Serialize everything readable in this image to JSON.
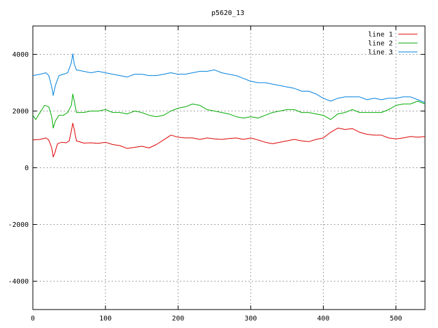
{
  "chart_data": {
    "type": "line",
    "title": "p5620_13",
    "xlabel": "",
    "ylabel": "",
    "xlim": [
      0,
      540
    ],
    "ylim": [
      -5000,
      5000
    ],
    "xticks": [
      0,
      100,
      200,
      300,
      400,
      500
    ],
    "yticks": [
      -4000,
      -2000,
      0,
      2000,
      4000
    ],
    "xtick_labels": [
      "0",
      "100",
      "200",
      "300",
      "400",
      "500"
    ],
    "ytick_labels": [
      "-4000",
      "-2000",
      "0",
      "2000",
      "4000"
    ],
    "grid": true,
    "legend_position": "top-right",
    "series": [
      {
        "name": "line 1",
        "color": "#dd0000",
        "points": [
          [
            0,
            980
          ],
          [
            10,
            1000
          ],
          [
            18,
            1050
          ],
          [
            22,
            980
          ],
          [
            26,
            700
          ],
          [
            28,
            380
          ],
          [
            30,
            500
          ],
          [
            34,
            850
          ],
          [
            40,
            900
          ],
          [
            46,
            880
          ],
          [
            50,
            950
          ],
          [
            53,
            1300
          ],
          [
            55,
            1570
          ],
          [
            57,
            1350
          ],
          [
            60,
            950
          ],
          [
            70,
            870
          ],
          [
            80,
            880
          ],
          [
            90,
            860
          ],
          [
            100,
            900
          ],
          [
            110,
            820
          ],
          [
            120,
            780
          ],
          [
            130,
            680
          ],
          [
            140,
            720
          ],
          [
            150,
            760
          ],
          [
            160,
            700
          ],
          [
            170,
            820
          ],
          [
            180,
            980
          ],
          [
            190,
            1150
          ],
          [
            200,
            1080
          ],
          [
            210,
            1050
          ],
          [
            220,
            1050
          ],
          [
            230,
            1000
          ],
          [
            240,
            1050
          ],
          [
            250,
            1020
          ],
          [
            260,
            1000
          ],
          [
            270,
            1030
          ],
          [
            280,
            1050
          ],
          [
            290,
            1000
          ],
          [
            300,
            1050
          ],
          [
            310,
            980
          ],
          [
            320,
            900
          ],
          [
            330,
            850
          ],
          [
            340,
            900
          ],
          [
            350,
            950
          ],
          [
            360,
            1000
          ],
          [
            370,
            950
          ],
          [
            380,
            920
          ],
          [
            390,
            1000
          ],
          [
            400,
            1050
          ],
          [
            410,
            1250
          ],
          [
            420,
            1400
          ],
          [
            430,
            1350
          ],
          [
            440,
            1380
          ],
          [
            450,
            1250
          ],
          [
            460,
            1180
          ],
          [
            470,
            1150
          ],
          [
            480,
            1150
          ],
          [
            490,
            1050
          ],
          [
            500,
            1020
          ],
          [
            510,
            1050
          ],
          [
            520,
            1100
          ],
          [
            530,
            1080
          ],
          [
            540,
            1100
          ]
        ]
      },
      {
        "name": "line 2",
        "color": "#00aa00",
        "points": [
          [
            0,
            1850
          ],
          [
            4,
            1700
          ],
          [
            10,
            1950
          ],
          [
            16,
            2200
          ],
          [
            22,
            2150
          ],
          [
            26,
            1800
          ],
          [
            28,
            1400
          ],
          [
            31,
            1650
          ],
          [
            36,
            1850
          ],
          [
            42,
            1850
          ],
          [
            48,
            1950
          ],
          [
            53,
            2200
          ],
          [
            55,
            2600
          ],
          [
            57,
            2350
          ],
          [
            60,
            1950
          ],
          [
            70,
            1950
          ],
          [
            80,
            2000
          ],
          [
            90,
            2000
          ],
          [
            100,
            2050
          ],
          [
            110,
            1950
          ],
          [
            120,
            1950
          ],
          [
            130,
            1900
          ],
          [
            140,
            2000
          ],
          [
            150,
            1950
          ],
          [
            160,
            1850
          ],
          [
            170,
            1800
          ],
          [
            180,
            1850
          ],
          [
            190,
            2000
          ],
          [
            200,
            2100
          ],
          [
            210,
            2150
          ],
          [
            220,
            2250
          ],
          [
            230,
            2200
          ],
          [
            240,
            2050
          ],
          [
            250,
            2000
          ],
          [
            260,
            1950
          ],
          [
            270,
            1900
          ],
          [
            280,
            1800
          ],
          [
            290,
            1750
          ],
          [
            300,
            1800
          ],
          [
            310,
            1750
          ],
          [
            320,
            1850
          ],
          [
            330,
            1950
          ],
          [
            340,
            2000
          ],
          [
            350,
            2050
          ],
          [
            360,
            2050
          ],
          [
            370,
            1950
          ],
          [
            380,
            1950
          ],
          [
            390,
            1900
          ],
          [
            400,
            1850
          ],
          [
            410,
            1700
          ],
          [
            420,
            1900
          ],
          [
            430,
            1950
          ],
          [
            440,
            2050
          ],
          [
            450,
            1950
          ],
          [
            460,
            1950
          ],
          [
            470,
            1950
          ],
          [
            480,
            1950
          ],
          [
            490,
            2050
          ],
          [
            500,
            2200
          ],
          [
            510,
            2250
          ],
          [
            520,
            2250
          ],
          [
            530,
            2350
          ],
          [
            540,
            2250
          ]
        ]
      },
      {
        "name": "line 3",
        "color": "#0080dd",
        "points": [
          [
            0,
            3250
          ],
          [
            10,
            3300
          ],
          [
            18,
            3350
          ],
          [
            22,
            3250
          ],
          [
            26,
            2850
          ],
          [
            28,
            2550
          ],
          [
            31,
            2900
          ],
          [
            36,
            3250
          ],
          [
            42,
            3300
          ],
          [
            48,
            3350
          ],
          [
            53,
            3700
          ],
          [
            55,
            4020
          ],
          [
            57,
            3650
          ],
          [
            60,
            3450
          ],
          [
            70,
            3400
          ],
          [
            80,
            3350
          ],
          [
            90,
            3400
          ],
          [
            100,
            3350
          ],
          [
            110,
            3300
          ],
          [
            120,
            3250
          ],
          [
            130,
            3200
          ],
          [
            140,
            3300
          ],
          [
            150,
            3300
          ],
          [
            160,
            3250
          ],
          [
            170,
            3250
          ],
          [
            180,
            3300
          ],
          [
            190,
            3350
          ],
          [
            200,
            3300
          ],
          [
            210,
            3300
          ],
          [
            220,
            3350
          ],
          [
            230,
            3400
          ],
          [
            240,
            3400
          ],
          [
            250,
            3450
          ],
          [
            260,
            3350
          ],
          [
            270,
            3300
          ],
          [
            280,
            3250
          ],
          [
            290,
            3150
          ],
          [
            300,
            3050
          ],
          [
            310,
            3000
          ],
          [
            320,
            3000
          ],
          [
            330,
            2950
          ],
          [
            340,
            2900
          ],
          [
            350,
            2850
          ],
          [
            360,
            2800
          ],
          [
            370,
            2700
          ],
          [
            380,
            2700
          ],
          [
            390,
            2600
          ],
          [
            400,
            2450
          ],
          [
            410,
            2350
          ],
          [
            420,
            2450
          ],
          [
            430,
            2500
          ],
          [
            440,
            2500
          ],
          [
            450,
            2500
          ],
          [
            460,
            2400
          ],
          [
            470,
            2450
          ],
          [
            480,
            2400
          ],
          [
            490,
            2450
          ],
          [
            500,
            2450
          ],
          [
            510,
            2500
          ],
          [
            520,
            2500
          ],
          [
            530,
            2400
          ],
          [
            540,
            2300
          ]
        ]
      }
    ]
  }
}
